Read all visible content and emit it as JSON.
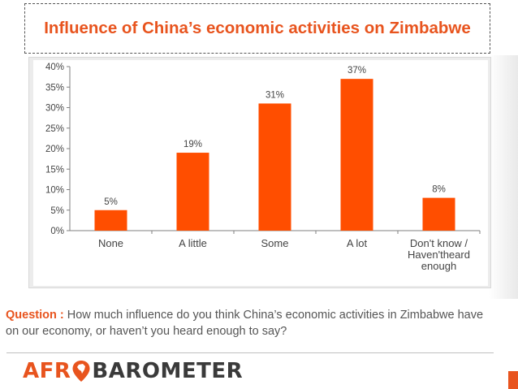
{
  "title": "Influence of China’s economic activities on Zimbabwe",
  "question": {
    "label": "Question :",
    "text": "How much influence do you think China’s economic activities in Zimbabwe have on our economy, or haven’t you heard enough to say?"
  },
  "logo": {
    "part1": "AFR",
    "part2": "BAROMETER"
  },
  "colors": {
    "accent": "#e8541e",
    "bar": "#ff4e00",
    "text": "#555555"
  },
  "chart_data": {
    "type": "bar",
    "categories": [
      "None",
      "A little",
      "Some",
      "A lot",
      "Don't know / Haven'theard enough"
    ],
    "category_lines": [
      [
        "None"
      ],
      [
        "A little"
      ],
      [
        "Some"
      ],
      [
        "A lot"
      ],
      [
        "Don't know /",
        "Haven'theard",
        "enough"
      ]
    ],
    "values": [
      5,
      19,
      31,
      37,
      8
    ],
    "data_labels": [
      "5%",
      "19%",
      "31%",
      "37%",
      "8%"
    ],
    "yticks": [
      "0%",
      "5%",
      "10%",
      "15%",
      "20%",
      "25%",
      "30%",
      "35%",
      "40%"
    ],
    "ylim": [
      0,
      40
    ],
    "grid": false,
    "title": "",
    "xlabel": "",
    "ylabel": ""
  }
}
